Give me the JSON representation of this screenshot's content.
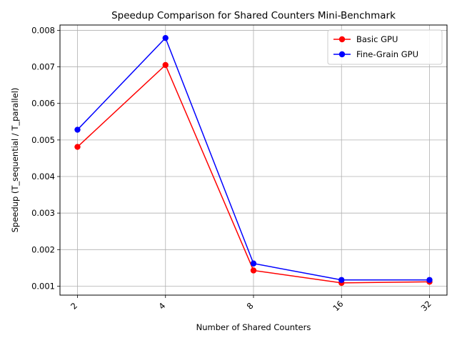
{
  "chart_data": {
    "type": "line",
    "title": "Speedup Comparison for Shared Counters Mini-Benchmark",
    "xlabel": "Number of Shared Counters",
    "ylabel": "Speedup (T_sequential / T_parallel)",
    "categories": [
      "2",
      "4",
      "8",
      "16",
      "32"
    ],
    "yticks": [
      "0.001",
      "0.002",
      "0.003",
      "0.004",
      "0.005",
      "0.006",
      "0.007",
      "0.008"
    ],
    "ylim": [
      0.000755,
      0.008145
    ],
    "grid": true,
    "legend_position": "top-right",
    "series": [
      {
        "name": "Basic GPU",
        "color": "#ff0000",
        "values": [
          0.00481,
          0.00705,
          0.00143,
          0.00109,
          0.00112
        ]
      },
      {
        "name": "Fine-Grain GPU",
        "color": "#0000ff",
        "values": [
          0.00528,
          0.00779,
          0.00162,
          0.00117,
          0.00117
        ]
      }
    ]
  }
}
